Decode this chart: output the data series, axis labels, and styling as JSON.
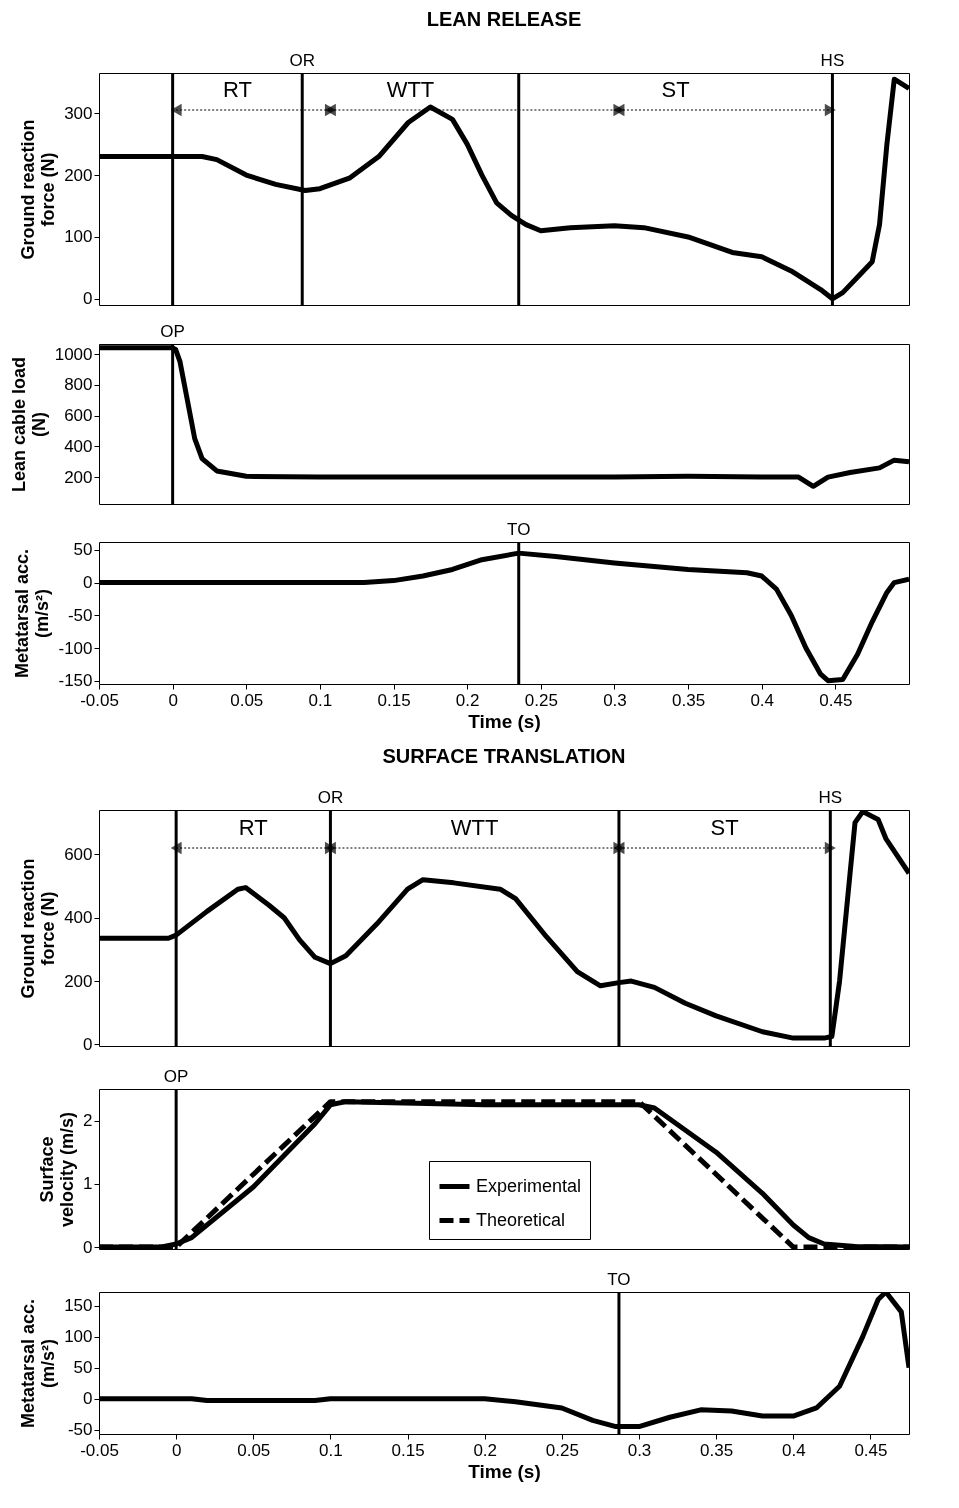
{
  "chart_data": [
    {
      "type": "line",
      "title": "LEAN RELEASE",
      "ylabel": "Ground reaction force (N)",
      "xlim": [
        -0.05,
        0.5
      ],
      "ylim": [
        -10,
        365
      ],
      "yticks": [
        0,
        100,
        200,
        300
      ],
      "tick_labels": "y",
      "x": [
        -0.05,
        0,
        0.02,
        0.03,
        0.05,
        0.07,
        0.09,
        0.1,
        0.12,
        0.14,
        0.16,
        0.175,
        0.19,
        0.2,
        0.21,
        0.22,
        0.23,
        0.24,
        0.25,
        0.27,
        0.3,
        0.32,
        0.35,
        0.38,
        0.4,
        0.42,
        0.44,
        0.448,
        0.455,
        0.465,
        0.475,
        0.48,
        0.485,
        0.49,
        0.5
      ],
      "series": [
        {
          "color": "#000000",
          "line_style": "solid",
          "values": [
            230,
            230,
            230,
            225,
            200,
            185,
            175,
            178,
            195,
            230,
            285,
            310,
            290,
            250,
            200,
            155,
            135,
            120,
            110,
            115,
            118,
            115,
            100,
            75,
            68,
            45,
            15,
            0,
            10,
            35,
            60,
            120,
            250,
            355,
            340
          ]
        }
      ],
      "ref_lines": [
        {
          "axis": "x",
          "value": 0
        },
        {
          "axis": "x",
          "value": 0.088,
          "label": "OR"
        },
        {
          "axis": "x",
          "value": 0.235
        },
        {
          "axis": "x",
          "value": 0.448,
          "label": "HS"
        }
      ],
      "annotations": [
        "RT",
        "WTT",
        "ST"
      ]
    },
    {
      "type": "line",
      "ylabel": "Lean cable load (N)",
      "xlim": [
        -0.05,
        0.5
      ],
      "ylim": [
        25,
        1065
      ],
      "yticks": [
        200,
        400,
        600,
        800,
        1000
      ],
      "tick_labels": "y",
      "x": [
        -0.05,
        0,
        0.002,
        0.005,
        0.01,
        0.015,
        0.02,
        0.03,
        0.05,
        0.1,
        0.3,
        0.35,
        0.4,
        0.425,
        0.435,
        0.445,
        0.46,
        0.48,
        0.49,
        0.5
      ],
      "series": [
        {
          "color": "#000000",
          "line_style": "solid",
          "values": [
            1040,
            1040,
            1030,
            950,
            700,
            450,
            320,
            240,
            205,
            200,
            200,
            205,
            200,
            200,
            140,
            200,
            230,
            260,
            310,
            300
          ]
        }
      ],
      "ref_lines": [
        {
          "axis": "x",
          "value": 0,
          "label": "OP"
        }
      ]
    },
    {
      "type": "line",
      "ylabel": "Metatarsal acc. (m/s²)",
      "xlabel": "Time (s)",
      "xlim": [
        -0.05,
        0.5
      ],
      "ylim": [
        -155,
        62
      ],
      "yticks": [
        -150,
        -100,
        -50,
        0,
        50
      ],
      "xticks": [
        -0.05,
        0,
        0.05,
        0.1,
        0.15,
        0.2,
        0.25,
        0.3,
        0.35,
        0.4,
        0.45
      ],
      "x": [
        -0.05,
        0.13,
        0.15,
        0.17,
        0.19,
        0.21,
        0.235,
        0.26,
        0.3,
        0.35,
        0.39,
        0.4,
        0.41,
        0.42,
        0.43,
        0.44,
        0.445,
        0.455,
        0.465,
        0.475,
        0.485,
        0.49,
        0.5
      ],
      "series": [
        {
          "color": "#000000",
          "line_style": "solid",
          "values": [
            0,
            0,
            3,
            10,
            20,
            35,
            45,
            40,
            30,
            20,
            15,
            10,
            -10,
            -50,
            -100,
            -140,
            -150,
            -148,
            -110,
            -60,
            -15,
            0,
            5
          ]
        }
      ],
      "ref_lines": [
        {
          "axis": "x",
          "value": 0.235,
          "label": "TO"
        }
      ]
    },
    {
      "type": "line",
      "title": "SURFACE TRANSLATION",
      "ylabel": "Ground reaction force (N)",
      "xlim": [
        -0.05,
        0.475
      ],
      "ylim": [
        -5,
        740
      ],
      "yticks": [
        0,
        200,
        400,
        600
      ],
      "tick_labels": "y",
      "x": [
        -0.05,
        -0.005,
        0,
        0.02,
        0.04,
        0.045,
        0.06,
        0.07,
        0.08,
        0.09,
        0.1,
        0.11,
        0.13,
        0.15,
        0.16,
        0.18,
        0.21,
        0.22,
        0.24,
        0.26,
        0.275,
        0.287,
        0.295,
        0.31,
        0.33,
        0.35,
        0.38,
        0.4,
        0.42,
        0.425,
        0.43,
        0.435,
        0.44,
        0.445,
        0.455,
        0.46,
        0.475
      ],
      "series": [
        {
          "color": "#000000",
          "line_style": "solid",
          "values": [
            335,
            335,
            345,
            420,
            490,
            495,
            440,
            400,
            330,
            275,
            255,
            280,
            380,
            490,
            520,
            510,
            490,
            460,
            340,
            230,
            185,
            195,
            200,
            180,
            130,
            90,
            40,
            20,
            20,
            25,
            200,
            450,
            700,
            735,
            710,
            650,
            540
          ]
        }
      ],
      "ref_lines": [
        {
          "axis": "x",
          "value": 0
        },
        {
          "axis": "x",
          "value": 0.1,
          "label": "OR"
        },
        {
          "axis": "x",
          "value": 0.287
        },
        {
          "axis": "x",
          "value": 0.424,
          "label": "HS"
        }
      ],
      "annotations": [
        "RT",
        "WTT",
        "ST"
      ]
    },
    {
      "type": "line",
      "ylabel": "Surface velocity (m/s)",
      "xlim": [
        -0.05,
        0.475
      ],
      "ylim": [
        -0.03,
        2.5
      ],
      "yticks": [
        0,
        1,
        2
      ],
      "tick_labels": "y",
      "legend": "bottom",
      "series": [
        {
          "name": "Experimental",
          "color": "#000000",
          "line_style": "solid",
          "x": [
            -0.05,
            -0.01,
            0,
            0.01,
            0.05,
            0.09,
            0.1,
            0.11,
            0.2,
            0.3,
            0.31,
            0.35,
            0.38,
            0.4,
            0.41,
            0.42,
            0.44,
            0.475
          ],
          "values": [
            0,
            0,
            0.05,
            0.15,
            0.95,
            1.95,
            2.25,
            2.3,
            2.25,
            2.25,
            2.2,
            1.5,
            0.85,
            0.35,
            0.15,
            0.05,
            0.01,
            0
          ]
        },
        {
          "name": "Theoretical",
          "color": "#000000",
          "line_style": "dashed",
          "x": [
            -0.05,
            0,
            0.1,
            0.3,
            0.4,
            0.475
          ],
          "values": [
            0,
            0,
            2.3,
            2.3,
            0,
            0
          ]
        }
      ],
      "ref_lines": [
        {
          "axis": "x",
          "value": 0,
          "label": "OP"
        }
      ]
    },
    {
      "type": "line",
      "ylabel": "Metatarsal acc. (m/s²)",
      "xlabel": "Time (s)",
      "xlim": [
        -0.05,
        0.475
      ],
      "ylim": [
        -57,
        172
      ],
      "yticks": [
        -50,
        0,
        50,
        100,
        150
      ],
      "xticks": [
        -0.05,
        0,
        0.05,
        0.1,
        0.15,
        0.2,
        0.25,
        0.3,
        0.35,
        0.4,
        0.45
      ],
      "x": [
        -0.05,
        0.01,
        0.02,
        0.09,
        0.1,
        0.2,
        0.22,
        0.25,
        0.27,
        0.285,
        0.3,
        0.32,
        0.34,
        0.36,
        0.38,
        0.4,
        0.415,
        0.43,
        0.445,
        0.455,
        0.46,
        0.47,
        0.475
      ],
      "series": [
        {
          "color": "#000000",
          "line_style": "solid",
          "values": [
            0,
            0,
            -3,
            -3,
            0,
            0,
            -5,
            -15,
            -35,
            -45,
            -45,
            -30,
            -18,
            -20,
            -28,
            -28,
            -15,
            20,
            100,
            160,
            172,
            140,
            50
          ]
        }
      ],
      "ref_lines": [
        {
          "axis": "x",
          "value": 0.287,
          "label": "TO"
        }
      ]
    }
  ]
}
